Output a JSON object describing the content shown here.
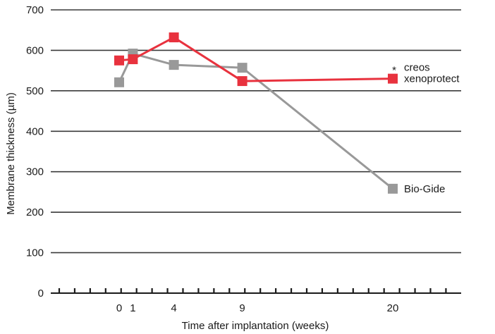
{
  "chart_data": {
    "type": "line",
    "xlabel": "Time after implantation (weeks)",
    "ylabel": "Membrane thickness (µm)",
    "ylim": [
      0,
      700
    ],
    "xlim": [
      -5,
      25
    ],
    "yticks": [
      0,
      100,
      200,
      300,
      400,
      500,
      600,
      700
    ],
    "xticks": [
      0,
      1,
      4,
      9,
      20
    ],
    "grid": "horizontal",
    "legend": "inline labels at right end of each series",
    "series": [
      {
        "name": "Bio-Gide",
        "color": "#999999",
        "x": [
          0,
          1,
          4,
          9,
          20
        ],
        "y": [
          521,
          592,
          564,
          557,
          258
        ]
      },
      {
        "name": "xenoprotect",
        "color": "#e8323e",
        "x": [
          0,
          1,
          4,
          9,
          20
        ],
        "y": [
          575,
          578,
          632,
          524,
          530
        ]
      }
    ],
    "annotations": [
      {
        "text": "*",
        "x": 20
      },
      {
        "text": "creos"
      }
    ]
  }
}
